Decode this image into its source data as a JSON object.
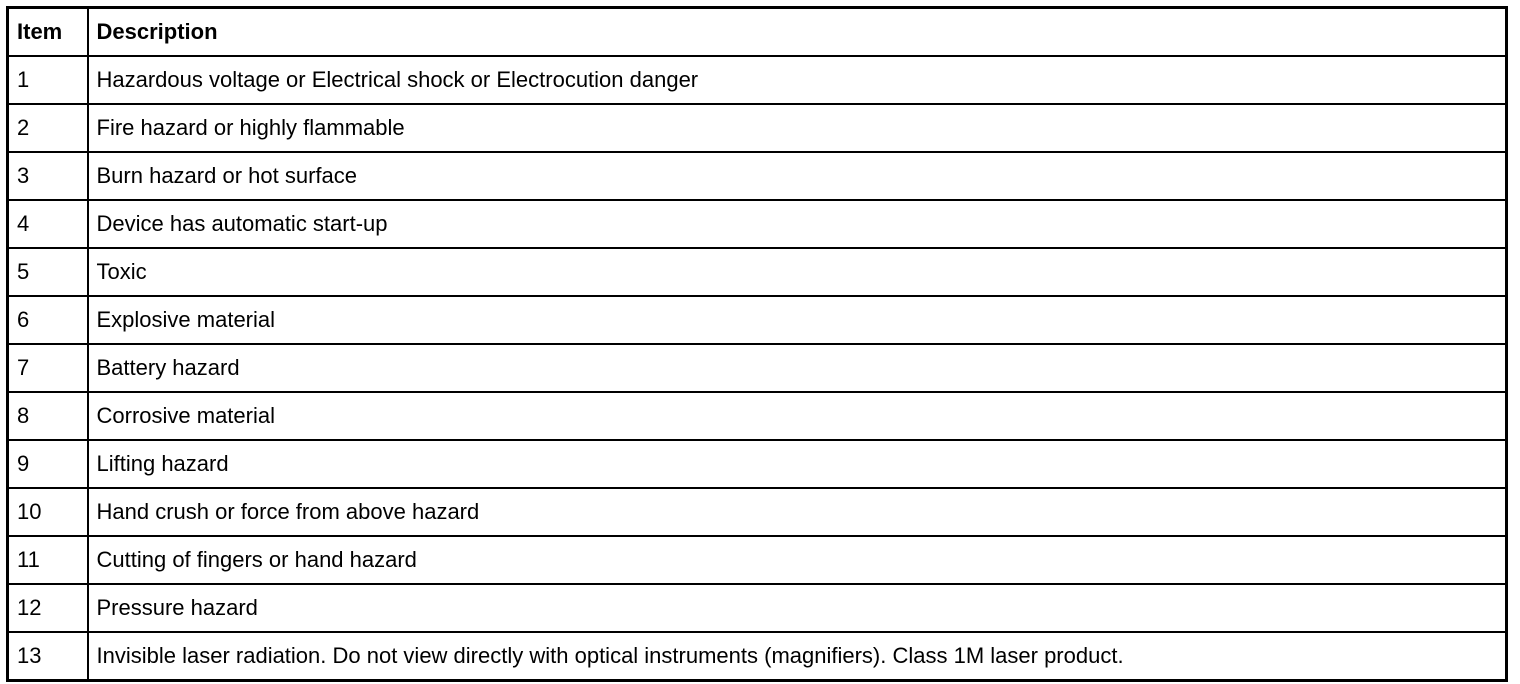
{
  "table": {
    "header": [
      "Item",
      "Description"
    ],
    "rows": [
      [
        "1",
        "Hazardous voltage or Electrical shock or Electrocution danger"
      ],
      [
        "2",
        "Fire hazard or highly flammable"
      ],
      [
        "3",
        "Burn hazard or hot surface"
      ],
      [
        "4",
        "Device has automatic start-up"
      ],
      [
        "5",
        "Toxic"
      ],
      [
        "6",
        "Explosive material"
      ],
      [
        "7",
        "Battery hazard"
      ],
      [
        "8",
        "Corrosive material"
      ],
      [
        "9",
        "Lifting hazard"
      ],
      [
        "10",
        "Hand crush or force from above hazard"
      ],
      [
        "11",
        "Cutting of fingers or hand hazard"
      ],
      [
        "12",
        "Pressure hazard"
      ],
      [
        "13",
        "Invisible laser radiation. Do not view directly with optical instruments (magnifiers). Class 1M laser product."
      ]
    ]
  }
}
